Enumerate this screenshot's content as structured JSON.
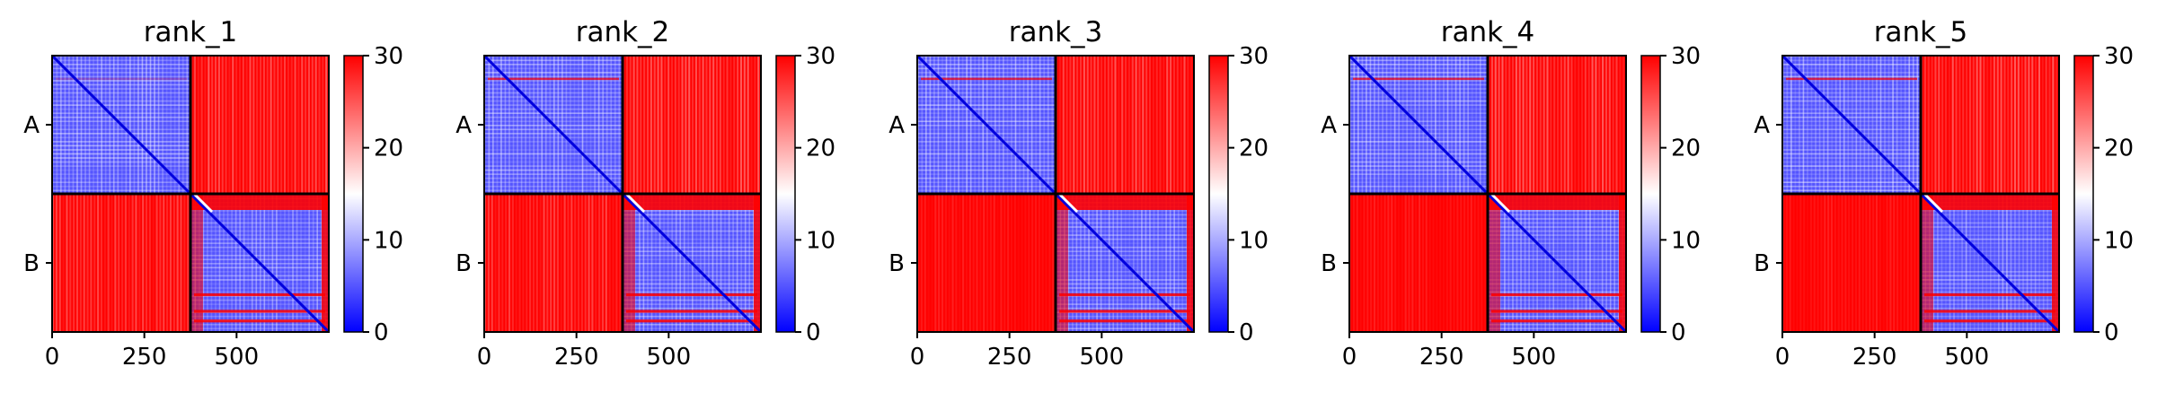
{
  "colors": {
    "low": "#0000ff",
    "mid": "#ffffff",
    "high": "#ff0000",
    "divider": "#000000"
  },
  "chart_data": [
    {
      "type": "heatmap",
      "title": "rank_1",
      "clim": [
        0,
        30
      ],
      "colorbar_ticks": [
        "0",
        "10",
        "20",
        "30"
      ],
      "y_groups": [
        "A",
        "B"
      ],
      "x_ticks": [
        0,
        250,
        500
      ],
      "x_tick_labels": [
        "0",
        "250",
        "500"
      ],
      "xlim": [
        0,
        750
      ],
      "boundary": 375,
      "size": 750,
      "grid_on": false,
      "description_values": {
        "within_group_level": 5,
        "between_group_level": 30
      }
    },
    {
      "type": "heatmap",
      "title": "rank_2",
      "clim": [
        0,
        30
      ],
      "colorbar_ticks": [
        "0",
        "10",
        "20",
        "30"
      ],
      "y_groups": [
        "A",
        "B"
      ],
      "x_ticks": [
        0,
        250,
        500
      ],
      "x_tick_labels": [
        "0",
        "250",
        "500"
      ],
      "xlim": [
        0,
        750
      ],
      "boundary": 375,
      "size": 750,
      "grid_on": false,
      "description_values": {
        "within_group_level": 5,
        "between_group_level": 30
      }
    },
    {
      "type": "heatmap",
      "title": "rank_3",
      "clim": [
        0,
        30
      ],
      "colorbar_ticks": [
        "0",
        "10",
        "20",
        "30"
      ],
      "y_groups": [
        "A",
        "B"
      ],
      "x_ticks": [
        0,
        250,
        500
      ],
      "x_tick_labels": [
        "0",
        "250",
        "500"
      ],
      "xlim": [
        0,
        750
      ],
      "boundary": 375,
      "size": 750,
      "grid_on": false,
      "description_values": {
        "within_group_level": 5,
        "between_group_level": 30
      }
    },
    {
      "type": "heatmap",
      "title": "rank_4",
      "clim": [
        0,
        30
      ],
      "colorbar_ticks": [
        "0",
        "10",
        "20",
        "30"
      ],
      "y_groups": [
        "A",
        "B"
      ],
      "x_ticks": [
        0,
        250,
        500
      ],
      "x_tick_labels": [
        "0",
        "250",
        "500"
      ],
      "xlim": [
        0,
        750
      ],
      "boundary": 375,
      "size": 750,
      "grid_on": false,
      "description_values": {
        "within_group_level": 5,
        "between_group_level": 30
      }
    },
    {
      "type": "heatmap",
      "title": "rank_5",
      "clim": [
        0,
        30
      ],
      "colorbar_ticks": [
        "0",
        "10",
        "20",
        "30"
      ],
      "y_groups": [
        "A",
        "B"
      ],
      "x_ticks": [
        0,
        250,
        500
      ],
      "x_tick_labels": [
        "0",
        "250",
        "500"
      ],
      "xlim": [
        0,
        750
      ],
      "boundary": 375,
      "size": 750,
      "grid_on": false,
      "description_values": {
        "within_group_level": 5,
        "between_group_level": 30
      }
    }
  ]
}
